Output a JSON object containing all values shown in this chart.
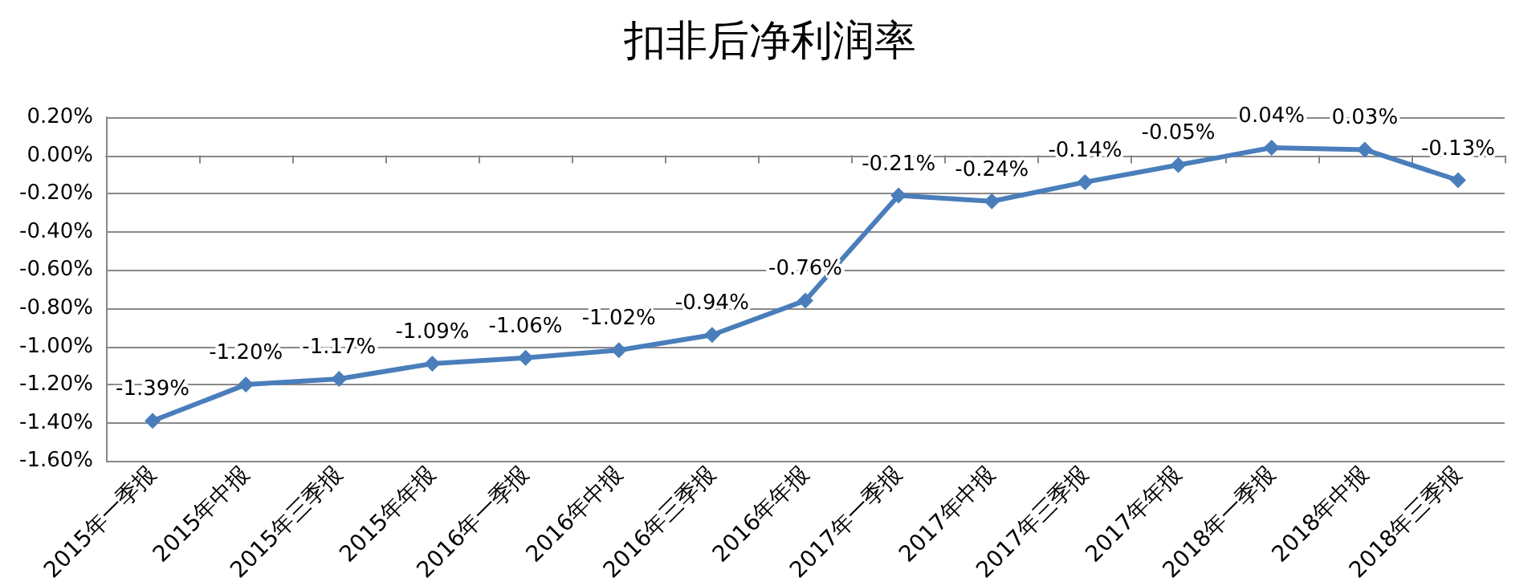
{
  "chart_data": {
    "type": "line",
    "title": "扣非后净利润率",
    "categories": [
      "2015年一季报",
      "2015年中报",
      "2015年三季报",
      "2015年年报",
      "2016年一季报",
      "2016年中报",
      "2016年三季报",
      "2016年年报",
      "2017年一季报",
      "2017年中报",
      "2017年三季报",
      "2017年年报",
      "2018年一季报",
      "2018年中报",
      "2018年三季报"
    ],
    "series": [
      {
        "color": "#4a7ebb",
        "values": [
          -1.39,
          -1.2,
          -1.17,
          -1.09,
          -1.06,
          -1.02,
          -0.94,
          -0.76,
          -0.21,
          -0.24,
          -0.14,
          -0.05,
          0.04,
          0.03,
          -0.13
        ],
        "value_labels": [
          "-1.39%",
          "-1.20%",
          "-1.17%",
          "-1.09%",
          "-1.06%",
          "-1.02%",
          "-0.94%",
          "-0.76%",
          "-0.21%",
          "-0.24%",
          "-0.14%",
          "-0.05%",
          "0.04%",
          "0.03%",
          "-0.13%"
        ]
      }
    ],
    "ylim": [
      -1.6,
      0.2
    ],
    "yticks": [
      {
        "value": -1.6,
        "label": "-1.60%"
      },
      {
        "value": -1.4,
        "label": "-1.40%"
      },
      {
        "value": -1.2,
        "label": "-1.20%"
      },
      {
        "value": -1.0,
        "label": "-1.00%"
      },
      {
        "value": -0.8,
        "label": "-0.80%"
      },
      {
        "value": -0.6,
        "label": "-0.60%"
      },
      {
        "value": -0.4,
        "label": "-0.40%"
      },
      {
        "value": -0.2,
        "label": "-0.20%"
      },
      {
        "value": 0,
        "label": "0.00%"
      },
      {
        "value": 0.2,
        "label": "0.20%"
      }
    ],
    "grid": "y",
    "marker": "diamond",
    "line_style": "solid"
  }
}
